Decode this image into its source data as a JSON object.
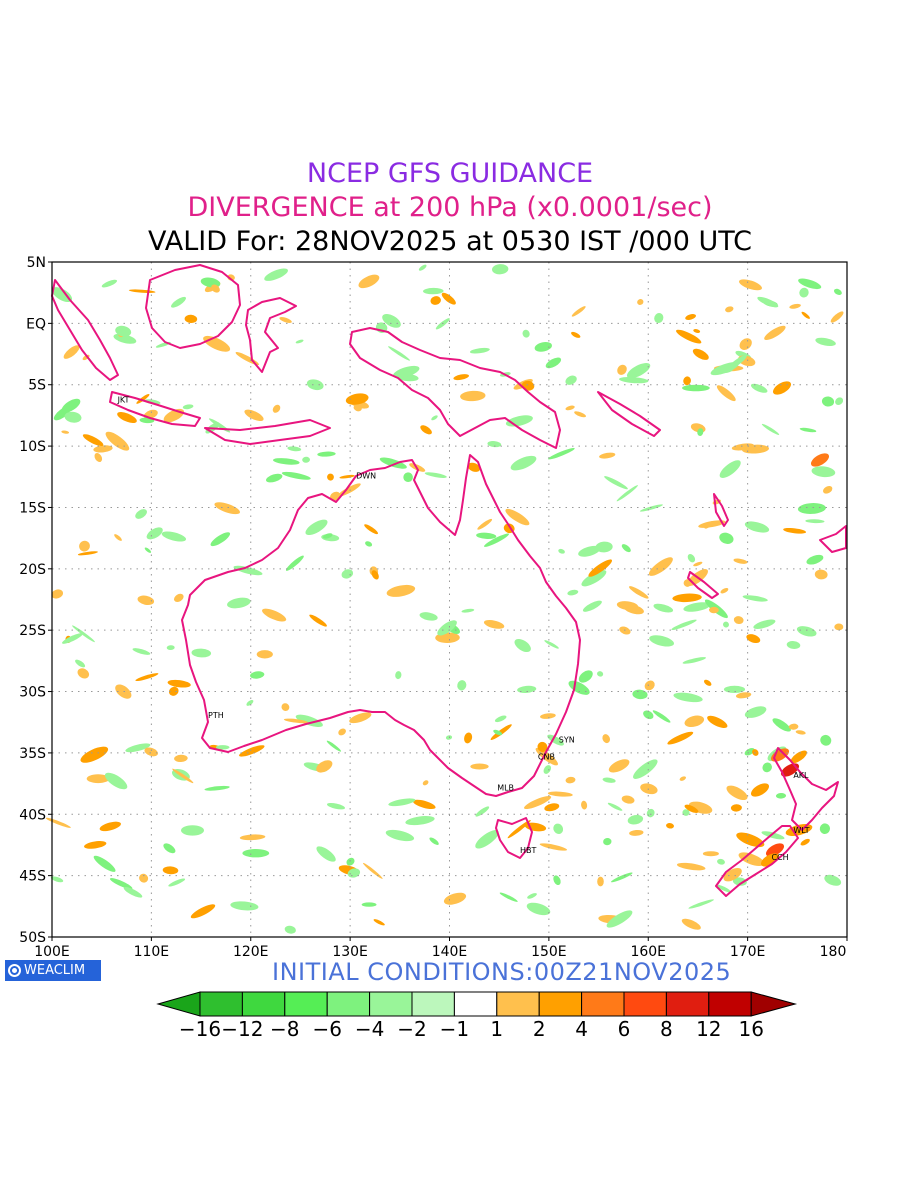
{
  "title": {
    "line1": "NCEP GFS GUIDANCE",
    "line2": "DIVERGENCE at 200 hPa (x0.0001/sec)",
    "line3": "VALID For: 28NOV2025 at 0530 IST /000 UTC"
  },
  "map": {
    "lat_labels": [
      "5N",
      "EQ",
      "5S",
      "10S",
      "15S",
      "20S",
      "25S",
      "30S",
      "35S",
      "40S",
      "45S",
      "50S"
    ],
    "lon_labels": [
      "100E",
      "110E",
      "120E",
      "130E",
      "140E",
      "150E",
      "160E",
      "170E",
      "180"
    ],
    "lon_range": [
      100,
      180
    ],
    "lat_range": [
      -50,
      5
    ],
    "grid": true,
    "coast_color": "#e8157f",
    "cities": [
      {
        "name": "JKT",
        "lon": 106.8,
        "lat": -6.2
      },
      {
        "name": "DWN",
        "lon": 130.8,
        "lat": -12.4
      },
      {
        "name": "PTH",
        "lon": 115.9,
        "lat": -31.9
      },
      {
        "name": "SYN",
        "lon": 151.2,
        "lat": -33.9
      },
      {
        "name": "CNB",
        "lon": 149.1,
        "lat": -35.3
      },
      {
        "name": "MLB",
        "lon": 145.0,
        "lat": -37.8
      },
      {
        "name": "HBT",
        "lon": 147.3,
        "lat": -42.9
      },
      {
        "name": "AKL",
        "lon": 174.8,
        "lat": -36.8
      },
      {
        "name": "WLT",
        "lon": 174.8,
        "lat": -41.3
      },
      {
        "name": "CCH",
        "lon": 172.6,
        "lat": -43.5
      }
    ]
  },
  "branding": {
    "logo_text": "WEACLIM",
    "initial_conditions": "INITIAL CONDITIONS:00Z21NOV2025"
  },
  "colorbar": {
    "labels": [
      "−16",
      "−12",
      "−8",
      "−6",
      "−4",
      "−2",
      "−1",
      "1",
      "2",
      "4",
      "6",
      "8",
      "12",
      "16"
    ],
    "colors": [
      "#1aa51a",
      "#2fbf2f",
      "#3fd83f",
      "#55ee55",
      "#7ef27e",
      "#99f599",
      "#bcf7bc",
      "#ffffff",
      "#ffc04d",
      "#ffa000",
      "#ff7a18",
      "#ff4a10",
      "#e01e10",
      "#c00000",
      "#a00000"
    ]
  }
}
